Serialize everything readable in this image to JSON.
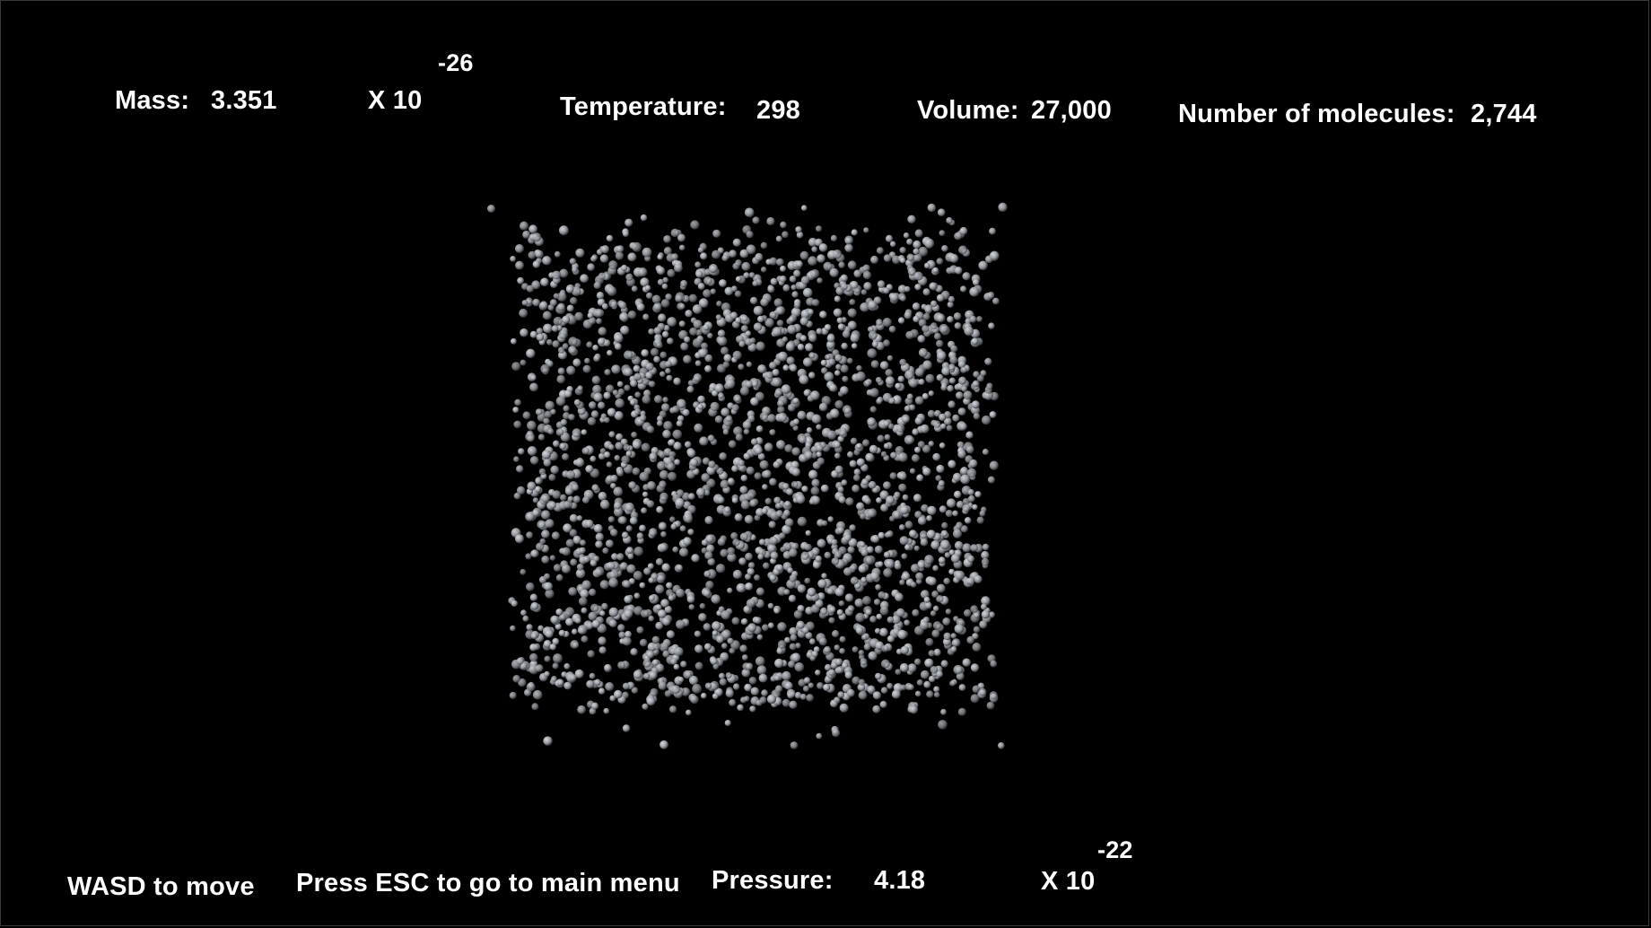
{
  "hud": {
    "mass_label": "Mass:",
    "mass_value": "3.351",
    "mass_multiplier": "X 10",
    "mass_exponent": "-26",
    "temperature_label": "Temperature:",
    "temperature_value": "298",
    "volume_label": "Volume:",
    "volume_value": "27,000",
    "molecules_label": "Number of molecules:",
    "molecules_value": "2,744"
  },
  "footer": {
    "move_hint": "WASD to move",
    "menu_hint": "Press ESC to go to main menu",
    "pressure_label": "Pressure:",
    "pressure_value": "4.18",
    "pressure_multiplier": "X 10",
    "pressure_exponent": "-22"
  },
  "simulation": {
    "molecule_count": 2744,
    "molecule_color": "#9a9ea4",
    "background": "#000000"
  }
}
